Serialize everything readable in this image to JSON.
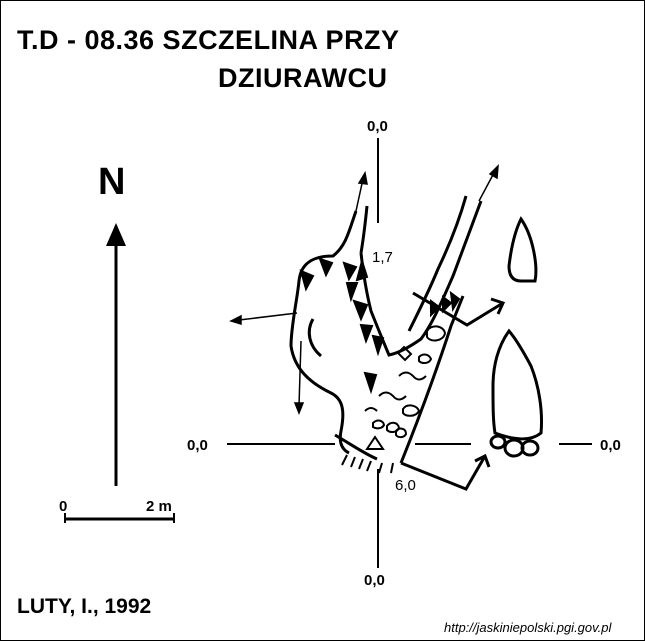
{
  "title": {
    "line1": "T.D - 08.36  SZCZELINA PRZY",
    "line2": "DZIURAWCU"
  },
  "north_label": "N",
  "scale_bar": {
    "start": "0",
    "end": "2 m"
  },
  "coordinate_labels": {
    "top": "0,0",
    "left": "0,0",
    "right": "0,0",
    "bottom": "0,0"
  },
  "depth_labels": {
    "upper": "1,7",
    "lower": "6,0"
  },
  "author": "LUTY, I., 1992",
  "source_url": "http://jaskiniepolski.pgi.gov.pl"
}
